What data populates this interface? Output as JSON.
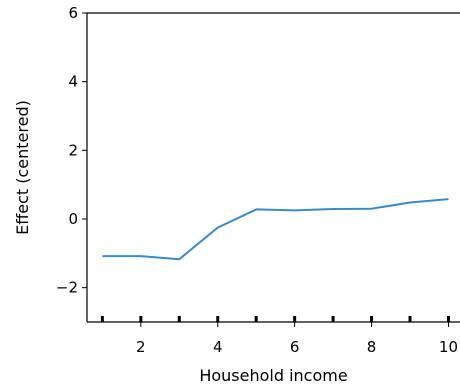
{
  "chart_data": {
    "type": "line",
    "title": "",
    "xlabel": "Household income",
    "ylabel": "Effect (centered)",
    "xlim": [
      0.6,
      10.3
    ],
    "ylim": [
      -3,
      6
    ],
    "xticks": [
      2,
      4,
      6,
      8,
      10
    ],
    "xtick_labels": [
      "2",
      "4",
      "6",
      "8",
      "10"
    ],
    "yticks": [
      -2,
      0,
      2,
      4,
      6
    ],
    "ytick_labels": [
      "−2",
      "0",
      "2",
      "4",
      "6"
    ],
    "grid": false,
    "rug": [
      1,
      2,
      3,
      4,
      5,
      6,
      7,
      8,
      9,
      10
    ],
    "series": [
      {
        "x": [
          1,
          2,
          3,
          4,
          5,
          6,
          7,
          8,
          9,
          10
        ],
        "y": [
          -1.08,
          -1.08,
          -1.17,
          -0.25,
          0.28,
          0.25,
          0.29,
          0.3,
          0.48,
          0.58
        ],
        "color": "#3a8bc4"
      }
    ]
  }
}
